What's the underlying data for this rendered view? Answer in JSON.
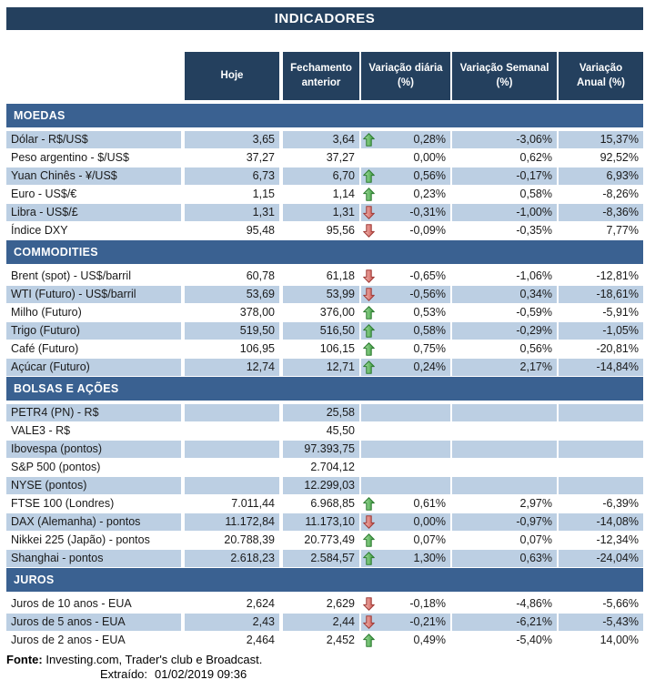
{
  "title": "INDICADORES",
  "columns": [
    "Hoje",
    "Fechamento\nanterior",
    "Variação diária\n(%)",
    "Variação Semanal\n(%)",
    "Variação\nAnual (%)"
  ],
  "colors": {
    "header_navy": "#24405e",
    "section_blue": "#3a6191",
    "stripe_blue": "#bccfe3",
    "up_arrow_green": "#3f9440",
    "down_arrow_red": "#c9534d",
    "text": "#1a1a1a"
  },
  "icons": {
    "up": "up-arrow-icon",
    "down": "down-arrow-icon"
  },
  "sections": [
    {
      "id": "moedas",
      "name": "MOEDAS",
      "stripe_start": "blue",
      "rows": [
        {
          "label": "Dólar - R$/US$",
          "hoje": "3,65",
          "fechamento": "3,64",
          "arrow": "up",
          "diaria": "0,28%",
          "semanal": "-3,06%",
          "anual": "15,37%"
        },
        {
          "label": "Peso argentino - $/US$",
          "hoje": "37,27",
          "fechamento": "37,27",
          "arrow": "none",
          "diaria": "0,00%",
          "semanal": "0,62%",
          "anual": "92,52%"
        },
        {
          "label": "Yuan Chinês - ¥/US$",
          "hoje": "6,73",
          "fechamento": "6,70",
          "arrow": "up",
          "diaria": "0,56%",
          "semanal": "-0,17%",
          "anual": "6,93%"
        },
        {
          "label": "Euro - US$/€",
          "hoje": "1,15",
          "fechamento": "1,14",
          "arrow": "up",
          "diaria": "0,23%",
          "semanal": "0,58%",
          "anual": "-8,26%"
        },
        {
          "label": "Libra - US$/£",
          "hoje": "1,31",
          "fechamento": "1,31",
          "arrow": "down",
          "diaria": "-0,31%",
          "semanal": "-1,00%",
          "anual": "-8,36%"
        },
        {
          "label": "Índice DXY",
          "hoje": "95,48",
          "fechamento": "95,56",
          "arrow": "down",
          "diaria": "-0,09%",
          "semanal": "-0,35%",
          "anual": "7,77%"
        }
      ]
    },
    {
      "id": "commodities",
      "name": "COMMODITIES",
      "stripe_start": "white",
      "rows": [
        {
          "label": "Brent (spot) - US$/barril",
          "hoje": "60,78",
          "fechamento": "61,18",
          "arrow": "down",
          "diaria": "-0,65%",
          "semanal": "-1,06%",
          "anual": "-12,81%"
        },
        {
          "label": "WTI (Futuro) - US$/barril",
          "hoje": "53,69",
          "fechamento": "53,99",
          "arrow": "down",
          "diaria": "-0,56%",
          "semanal": "0,34%",
          "anual": "-18,61%"
        },
        {
          "label": "Milho (Futuro)",
          "hoje": "378,00",
          "fechamento": "376,00",
          "arrow": "up",
          "diaria": "0,53%",
          "semanal": "-0,59%",
          "anual": "-5,91%"
        },
        {
          "label": "Trigo (Futuro)",
          "hoje": "519,50",
          "fechamento": "516,50",
          "arrow": "up",
          "diaria": "0,58%",
          "semanal": "-0,29%",
          "anual": "-1,05%"
        },
        {
          "label": "Café (Futuro)",
          "hoje": "106,95",
          "fechamento": "106,15",
          "arrow": "up",
          "diaria": "0,75%",
          "semanal": "0,56%",
          "anual": "-20,81%"
        },
        {
          "label": "Açúcar (Futuro)",
          "hoje": "12,74",
          "fechamento": "12,71",
          "arrow": "up",
          "diaria": "0,24%",
          "semanal": "2,17%",
          "anual": "-14,84%"
        }
      ]
    },
    {
      "id": "bolsas-e-acoes",
      "name": "BOLSAS E AÇÕES",
      "stripe_start": "blue",
      "rows": [
        {
          "label": "PETR4 (PN) - R$",
          "hoje": "",
          "fechamento": "25,58",
          "arrow": "none",
          "diaria": "",
          "semanal": "",
          "anual": ""
        },
        {
          "label": "VALE3 - R$",
          "hoje": "",
          "fechamento": "45,50",
          "arrow": "none",
          "diaria": "",
          "semanal": "",
          "anual": ""
        },
        {
          "label": "Ibovespa (pontos)",
          "hoje": "",
          "fechamento": "97.393,75",
          "arrow": "none",
          "diaria": "",
          "semanal": "",
          "anual": ""
        },
        {
          "label": "S&P 500 (pontos)",
          "hoje": "",
          "fechamento": "2.704,12",
          "arrow": "none",
          "diaria": "",
          "semanal": "",
          "anual": ""
        },
        {
          "label": "NYSE (pontos)",
          "hoje": "",
          "fechamento": "12.299,03",
          "arrow": "none",
          "diaria": "",
          "semanal": "",
          "anual": ""
        },
        {
          "label": "FTSE 100 (Londres)",
          "hoje": "7.011,44",
          "fechamento": "6.968,85",
          "arrow": "up",
          "diaria": "0,61%",
          "semanal": "2,97%",
          "anual": "-6,39%"
        },
        {
          "label": "DAX (Alemanha) - pontos",
          "hoje": "11.172,84",
          "fechamento": "11.173,10",
          "arrow": "down",
          "diaria": "0,00%",
          "semanal": "-0,97%",
          "anual": "-14,08%"
        },
        {
          "label": "Nikkei 225 (Japão) - pontos",
          "hoje": "20.788,39",
          "fechamento": "20.773,49",
          "arrow": "up",
          "diaria": "0,07%",
          "semanal": "0,07%",
          "anual": "-12,34%"
        },
        {
          "label": "Shanghai - pontos",
          "hoje": "2.618,23",
          "fechamento": "2.584,57",
          "arrow": "up",
          "diaria": "1,30%",
          "semanal": "0,63%",
          "anual": "-24,04%"
        }
      ]
    },
    {
      "id": "juros",
      "name": "JUROS",
      "stripe_start": "white",
      "rows": [
        {
          "label": "Juros de 10 anos - EUA",
          "hoje": "2,624",
          "fechamento": "2,629",
          "arrow": "down",
          "diaria": "-0,18%",
          "semanal": "-4,86%",
          "anual": "-5,66%"
        },
        {
          "label": "Juros de 5 anos - EUA",
          "hoje": "2,43",
          "fechamento": "2,44",
          "arrow": "down",
          "diaria": "-0,21%",
          "semanal": "-6,21%",
          "anual": "-5,43%"
        },
        {
          "label": "Juros de 2 anos - EUA",
          "hoje": "2,464",
          "fechamento": "2,452",
          "arrow": "up",
          "diaria": "0,49%",
          "semanal": "-5,40%",
          "anual": "14,00%"
        }
      ]
    }
  ],
  "footer": {
    "fonte_label": "Fonte:",
    "fonte_text": " Investing.com, Trader's club e Broadcast.",
    "extraido_label": "Extraído:",
    "extraido_value": "01/02/2019 09:36"
  }
}
